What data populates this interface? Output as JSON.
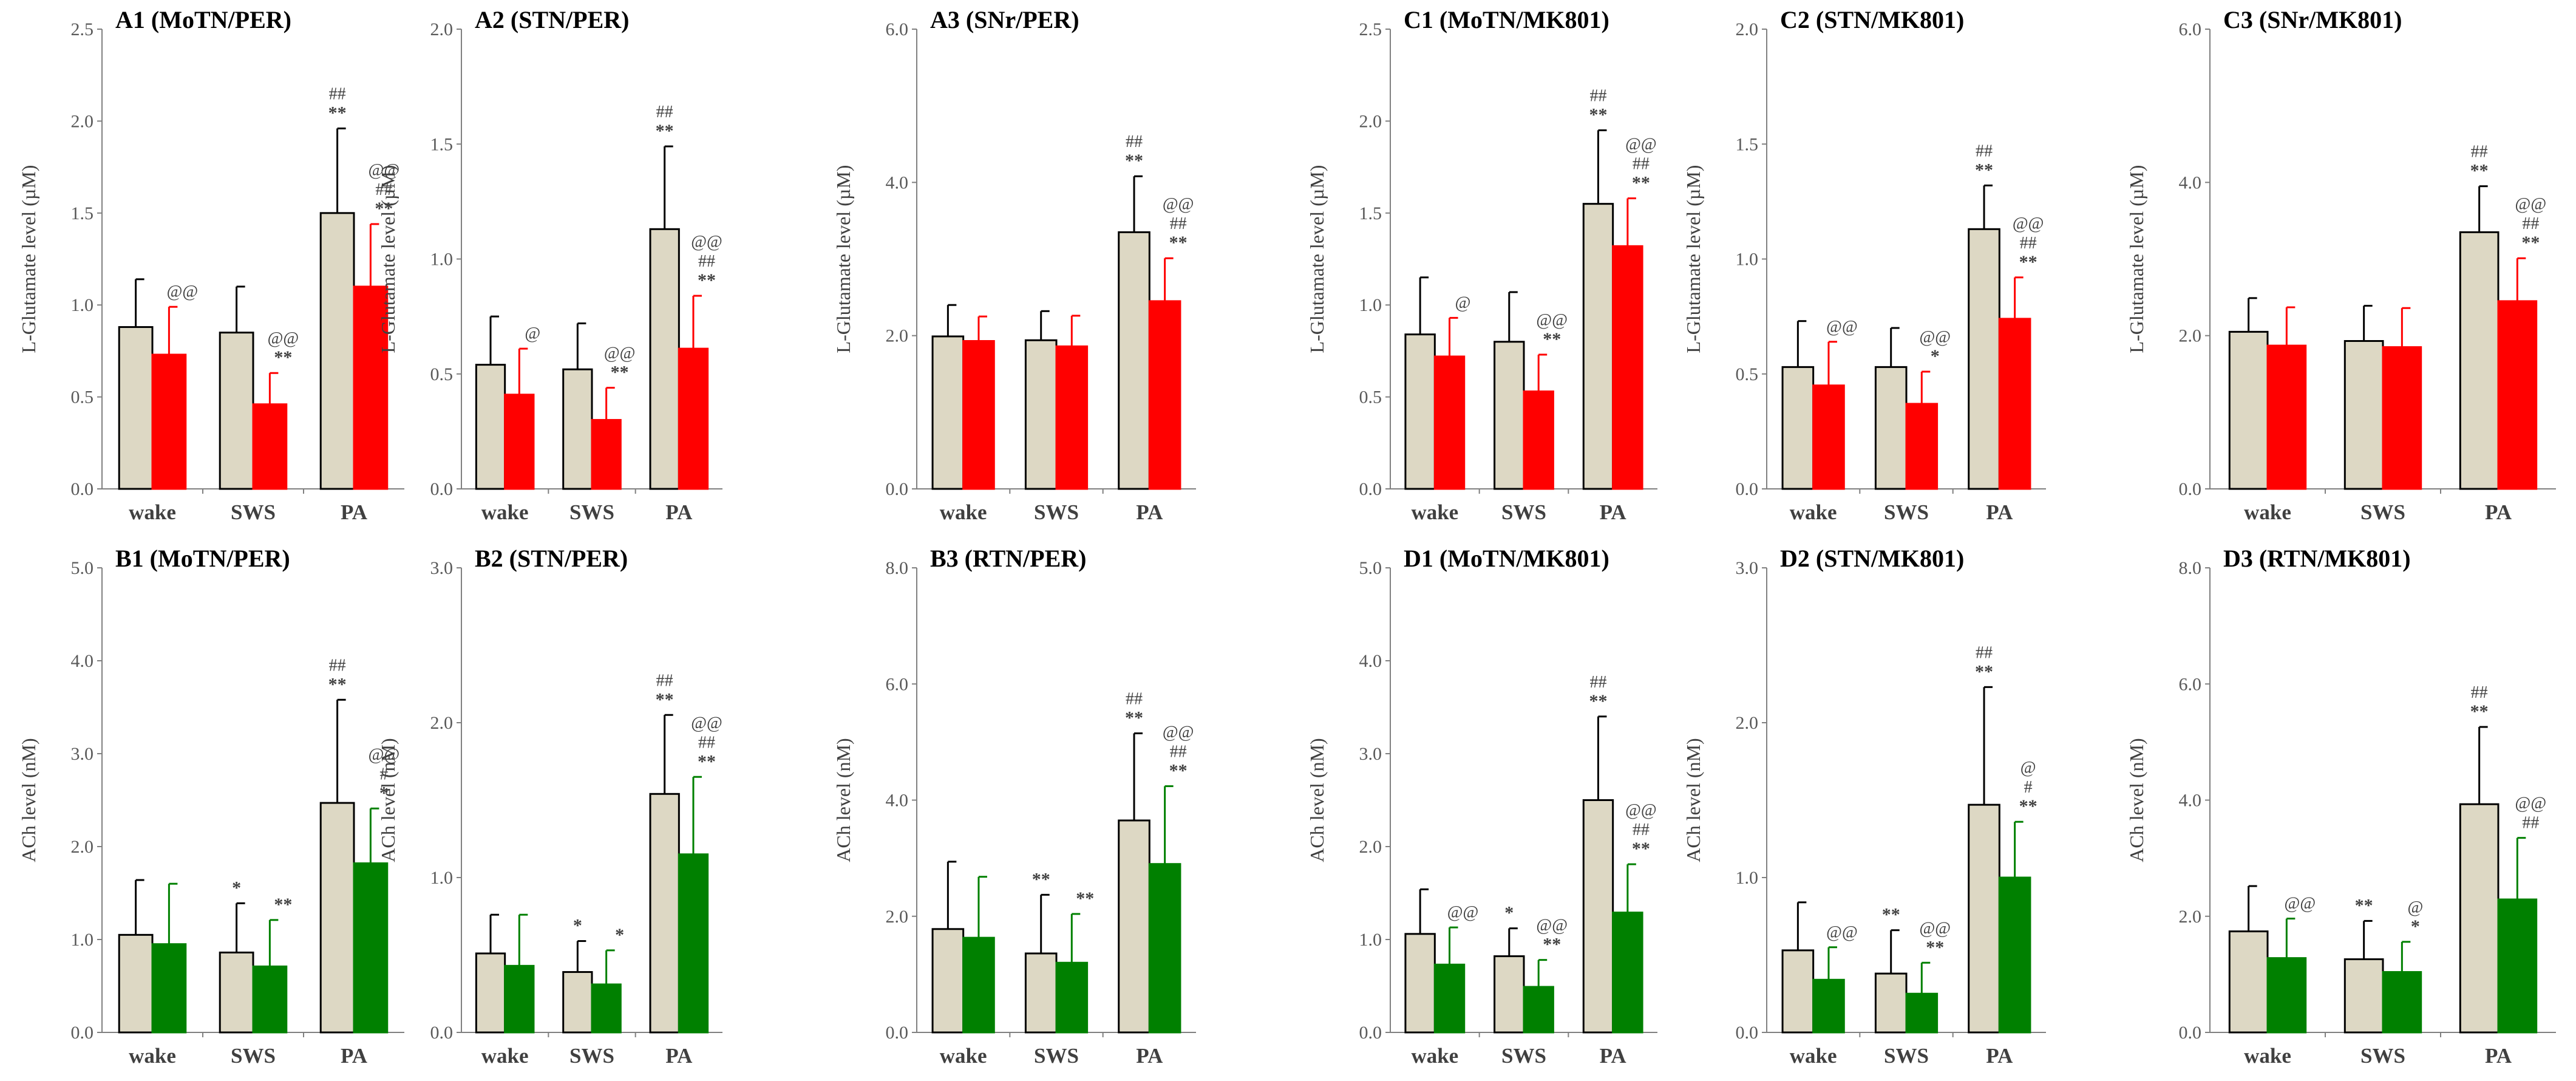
{
  "colors": {
    "control_bar": "#ddd8c4",
    "glutamate_treatment": "#ff0000",
    "ach_treatment": "#008000",
    "axis": "#808080",
    "bar_edge": "#000000",
    "text": "#404040"
  },
  "chart_data": [
    {
      "type": "bar",
      "id": "A1",
      "title": "A1 (MoTN/PER)",
      "ylabel": "L-Glutamate level (µM)",
      "categories": [
        "wake",
        "SWS",
        "PA"
      ],
      "ylim": [
        0,
        2.5
      ],
      "yticks": [
        "0.0",
        "0.5",
        "1.0",
        "1.5",
        "2.0",
        "2.5"
      ],
      "treatment_color": "glutamate_treatment",
      "series": [
        {
          "name": "control",
          "values": [
            0.88,
            0.85,
            1.5
          ],
          "errors": [
            0.26,
            0.25,
            0.46
          ]
        },
        {
          "name": "treatment",
          "values": [
            0.73,
            0.46,
            1.1
          ],
          "errors": [
            0.26,
            0.17,
            0.34
          ]
        }
      ],
      "annotations": [
        {
          "category": 0,
          "series": 1,
          "lines": [
            "@@"
          ]
        },
        {
          "category": 1,
          "series": 1,
          "lines": [
            "@@",
            "**"
          ]
        },
        {
          "category": 2,
          "series": 0,
          "lines": [
            "##",
            "**"
          ]
        },
        {
          "category": 2,
          "series": 1,
          "lines": [
            "@@",
            "##",
            "**"
          ]
        }
      ]
    },
    {
      "type": "bar",
      "id": "A2",
      "title": "A2 (STN/PER)",
      "ylabel": "L-Glutamate level (µM)",
      "categories": [
        "wake",
        "SWS",
        "PA"
      ],
      "ylim": [
        0,
        2.0
      ],
      "yticks": [
        "0.0",
        "0.5",
        "1.0",
        "1.5",
        "2.0"
      ],
      "treatment_color": "glutamate_treatment",
      "series": [
        {
          "name": "control",
          "values": [
            0.54,
            0.52,
            1.13
          ],
          "errors": [
            0.21,
            0.2,
            0.36
          ]
        },
        {
          "name": "treatment",
          "values": [
            0.41,
            0.3,
            0.61
          ],
          "errors": [
            0.2,
            0.14,
            0.23
          ]
        }
      ],
      "annotations": [
        {
          "category": 0,
          "series": 1,
          "lines": [
            "@"
          ]
        },
        {
          "category": 1,
          "series": 1,
          "lines": [
            "@@",
            "**"
          ]
        },
        {
          "category": 2,
          "series": 0,
          "lines": [
            "##",
            "**"
          ]
        },
        {
          "category": 2,
          "series": 1,
          "lines": [
            "@@",
            "##",
            "**"
          ]
        }
      ]
    },
    {
      "type": "bar",
      "id": "A3",
      "title": "A3 (SNr/PER)",
      "ylabel": "L-Glutamate level (µM)",
      "categories": [
        "wake",
        "SWS",
        "PA"
      ],
      "ylim": [
        0,
        6.0
      ],
      "yticks": [
        "0.0",
        "2.0",
        "4.0",
        "6.0"
      ],
      "treatment_color": "glutamate_treatment",
      "series": [
        {
          "name": "control",
          "values": [
            1.99,
            1.94,
            3.35
          ],
          "errors": [
            0.41,
            0.38,
            0.73
          ]
        },
        {
          "name": "treatment",
          "values": [
            1.93,
            1.86,
            2.45
          ],
          "errors": [
            0.32,
            0.4,
            0.56
          ]
        }
      ],
      "annotations": [
        {
          "category": 2,
          "series": 0,
          "lines": [
            "##",
            "**"
          ]
        },
        {
          "category": 2,
          "series": 1,
          "lines": [
            "@@",
            "##",
            "**"
          ]
        }
      ]
    },
    {
      "type": "bar",
      "id": "C1",
      "title": "C1 (MoTN/MK801)",
      "ylabel": "L-Glutamate level (µM)",
      "categories": [
        "wake",
        "SWS",
        "PA"
      ],
      "ylim": [
        0,
        2.5
      ],
      "yticks": [
        "0.0",
        "0.5",
        "1.0",
        "1.5",
        "2.0",
        "2.5"
      ],
      "treatment_color": "glutamate_treatment",
      "series": [
        {
          "name": "control",
          "values": [
            0.84,
            0.8,
            1.55
          ],
          "errors": [
            0.31,
            0.27,
            0.4
          ]
        },
        {
          "name": "treatment",
          "values": [
            0.72,
            0.53,
            1.32
          ],
          "errors": [
            0.21,
            0.2,
            0.26
          ]
        }
      ],
      "annotations": [
        {
          "category": 0,
          "series": 1,
          "lines": [
            "@"
          ]
        },
        {
          "category": 1,
          "series": 1,
          "lines": [
            "@@",
            "**"
          ]
        },
        {
          "category": 2,
          "series": 0,
          "lines": [
            "##",
            "**"
          ]
        },
        {
          "category": 2,
          "series": 1,
          "lines": [
            "@@",
            "##",
            "**"
          ]
        }
      ]
    },
    {
      "type": "bar",
      "id": "C2",
      "title": "C2 (STN/MK801)",
      "ylabel": "L-Glutamate level (µM)",
      "categories": [
        "wake",
        "SWS",
        "PA"
      ],
      "ylim": [
        0,
        2.0
      ],
      "yticks": [
        "0.0",
        "0.5",
        "1.0",
        "1.5",
        "2.0"
      ],
      "treatment_color": "glutamate_treatment",
      "series": [
        {
          "name": "control",
          "values": [
            0.53,
            0.53,
            1.13
          ],
          "errors": [
            0.2,
            0.17,
            0.19
          ]
        },
        {
          "name": "treatment",
          "values": [
            0.45,
            0.37,
            0.74
          ],
          "errors": [
            0.19,
            0.14,
            0.18
          ]
        }
      ],
      "annotations": [
        {
          "category": 0,
          "series": 1,
          "lines": [
            "@@"
          ]
        },
        {
          "category": 1,
          "series": 1,
          "lines": [
            "@@",
            "*"
          ]
        },
        {
          "category": 2,
          "series": 0,
          "lines": [
            "##",
            "**"
          ]
        },
        {
          "category": 2,
          "series": 1,
          "lines": [
            "@@",
            "##",
            "**"
          ]
        }
      ]
    },
    {
      "type": "bar",
      "id": "C3",
      "title": "C3 (SNr/MK801)",
      "ylabel": "L-Glutamate level (µM)",
      "categories": [
        "wake",
        "SWS",
        "PA"
      ],
      "ylim": [
        0,
        6.0
      ],
      "yticks": [
        "0.0",
        "2.0",
        "4.0",
        "6.0"
      ],
      "treatment_color": "glutamate_treatment",
      "series": [
        {
          "name": "control",
          "values": [
            2.05,
            1.93,
            3.35
          ],
          "errors": [
            0.44,
            0.46,
            0.6
          ]
        },
        {
          "name": "treatment",
          "values": [
            1.87,
            1.85,
            2.45
          ],
          "errors": [
            0.5,
            0.51,
            0.56
          ]
        }
      ],
      "annotations": [
        {
          "category": 2,
          "series": 0,
          "lines": [
            "##",
            "**"
          ]
        },
        {
          "category": 2,
          "series": 1,
          "lines": [
            "@@",
            "##",
            "**"
          ]
        }
      ]
    },
    {
      "type": "bar",
      "id": "B1",
      "title": "B1 (MoTN/PER)",
      "ylabel": "ACh level (nM)",
      "categories": [
        "wake",
        "SWS",
        "PA"
      ],
      "ylim": [
        0,
        5.0
      ],
      "yticks": [
        "0.0",
        "1.0",
        "2.0",
        "3.0",
        "4.0",
        "5.0"
      ],
      "treatment_color": "ach_treatment",
      "series": [
        {
          "name": "control",
          "values": [
            1.05,
            0.86,
            2.47
          ],
          "errors": [
            0.59,
            0.53,
            1.11
          ]
        },
        {
          "name": "treatment",
          "values": [
            0.95,
            0.71,
            1.82
          ],
          "errors": [
            0.65,
            0.5,
            0.59
          ]
        }
      ],
      "annotations": [
        {
          "category": 1,
          "series": 0,
          "lines": [
            "*"
          ]
        },
        {
          "category": 1,
          "series": 1,
          "lines": [
            "**"
          ]
        },
        {
          "category": 2,
          "series": 0,
          "lines": [
            "##",
            "**"
          ]
        },
        {
          "category": 2,
          "series": 1,
          "lines": [
            "@@",
            "#",
            "*"
          ]
        }
      ]
    },
    {
      "type": "bar",
      "id": "B2",
      "title": "B2 (STN/PER)",
      "ylabel": "ACh level (nM)",
      "categories": [
        "wake",
        "SWS",
        "PA"
      ],
      "ylim": [
        0,
        3.0
      ],
      "yticks": [
        "0.0",
        "1.0",
        "2.0",
        "3.0"
      ],
      "treatment_color": "ach_treatment",
      "series": [
        {
          "name": "control",
          "values": [
            0.51,
            0.39,
            1.54
          ],
          "errors": [
            0.25,
            0.2,
            0.51
          ]
        },
        {
          "name": "treatment",
          "values": [
            0.43,
            0.31,
            1.15
          ],
          "errors": [
            0.33,
            0.22,
            0.5
          ]
        }
      ],
      "annotations": [
        {
          "category": 1,
          "series": 0,
          "lines": [
            "*"
          ]
        },
        {
          "category": 1,
          "series": 1,
          "lines": [
            "*"
          ]
        },
        {
          "category": 2,
          "series": 0,
          "lines": [
            "##",
            "**"
          ]
        },
        {
          "category": 2,
          "series": 1,
          "lines": [
            "@@",
            "##",
            "**"
          ]
        }
      ]
    },
    {
      "type": "bar",
      "id": "B3",
      "title": "B3 (RTN/PER)",
      "ylabel": "ACh level (nM)",
      "categories": [
        "wake",
        "SWS",
        "PA"
      ],
      "ylim": [
        0,
        8.0
      ],
      "yticks": [
        "0.0",
        "2.0",
        "4.0",
        "6.0",
        "8.0"
      ],
      "treatment_color": "ach_treatment",
      "series": [
        {
          "name": "control",
          "values": [
            1.78,
            1.36,
            3.65
          ],
          "errors": [
            1.16,
            1.01,
            1.5
          ]
        },
        {
          "name": "treatment",
          "values": [
            1.63,
            1.2,
            2.9
          ],
          "errors": [
            1.05,
            0.84,
            1.34
          ]
        }
      ],
      "annotations": [
        {
          "category": 1,
          "series": 0,
          "lines": [
            "**"
          ]
        },
        {
          "category": 1,
          "series": 1,
          "lines": [
            "**"
          ]
        },
        {
          "category": 2,
          "series": 0,
          "lines": [
            "##",
            "**"
          ]
        },
        {
          "category": 2,
          "series": 1,
          "lines": [
            "@@",
            "##",
            "**"
          ]
        }
      ]
    },
    {
      "type": "bar",
      "id": "D1",
      "title": "D1 (MoTN/MK801)",
      "ylabel": "ACh level (nM)",
      "categories": [
        "wake",
        "SWS",
        "PA"
      ],
      "ylim": [
        0,
        5.0
      ],
      "yticks": [
        "0.0",
        "1.0",
        "2.0",
        "3.0",
        "4.0",
        "5.0"
      ],
      "treatment_color": "ach_treatment",
      "series": [
        {
          "name": "control",
          "values": [
            1.06,
            0.82,
            2.5
          ],
          "errors": [
            0.48,
            0.3,
            0.9
          ]
        },
        {
          "name": "treatment",
          "values": [
            0.73,
            0.49,
            1.29
          ],
          "errors": [
            0.4,
            0.29,
            0.52
          ]
        }
      ],
      "annotations": [
        {
          "category": 0,
          "series": 1,
          "lines": [
            "@@"
          ]
        },
        {
          "category": 1,
          "series": 0,
          "lines": [
            "*"
          ]
        },
        {
          "category": 1,
          "series": 1,
          "lines": [
            "@@",
            "**"
          ]
        },
        {
          "category": 2,
          "series": 0,
          "lines": [
            "##",
            "**"
          ]
        },
        {
          "category": 2,
          "series": 1,
          "lines": [
            "@@",
            "##",
            "**"
          ]
        }
      ]
    },
    {
      "type": "bar",
      "id": "D2",
      "title": "D2 (STN/MK801)",
      "ylabel": "ACh level (nM)",
      "categories": [
        "wake",
        "SWS",
        "PA"
      ],
      "ylim": [
        0,
        3.0
      ],
      "yticks": [
        "0.0",
        "1.0",
        "2.0",
        "3.0"
      ],
      "treatment_color": "ach_treatment",
      "series": [
        {
          "name": "control",
          "values": [
            0.53,
            0.38,
            1.47
          ],
          "errors": [
            0.31,
            0.28,
            0.76
          ]
        },
        {
          "name": "treatment",
          "values": [
            0.34,
            0.25,
            1.0
          ],
          "errors": [
            0.21,
            0.2,
            0.36
          ]
        }
      ],
      "annotations": [
        {
          "category": 0,
          "series": 1,
          "lines": [
            "@@"
          ]
        },
        {
          "category": 1,
          "series": 0,
          "lines": [
            "**"
          ]
        },
        {
          "category": 1,
          "series": 1,
          "lines": [
            "@@",
            "**"
          ]
        },
        {
          "category": 2,
          "series": 0,
          "lines": [
            "##",
            "**"
          ]
        },
        {
          "category": 2,
          "series": 1,
          "lines": [
            "@",
            "#",
            "**"
          ]
        }
      ]
    },
    {
      "type": "bar",
      "id": "D3",
      "title": "D3 (RTN/MK801)",
      "ylabel": "ACh level (nM)",
      "categories": [
        "wake",
        "SWS",
        "PA"
      ],
      "ylim": [
        0,
        8.0
      ],
      "yticks": [
        "0.0",
        "2.0",
        "4.0",
        "6.0",
        "8.0"
      ],
      "treatment_color": "ach_treatment",
      "series": [
        {
          "name": "control",
          "values": [
            1.74,
            1.26,
            3.93
          ],
          "errors": [
            0.78,
            0.66,
            1.33
          ]
        },
        {
          "name": "treatment",
          "values": [
            1.28,
            1.04,
            2.29
          ],
          "errors": [
            0.68,
            0.52,
            1.06
          ]
        }
      ],
      "annotations": [
        {
          "category": 0,
          "series": 1,
          "lines": [
            "@@"
          ]
        },
        {
          "category": 1,
          "series": 0,
          "lines": [
            "**"
          ]
        },
        {
          "category": 1,
          "series": 1,
          "lines": [
            "@",
            "*"
          ]
        },
        {
          "category": 2,
          "series": 0,
          "lines": [
            "##",
            "**"
          ]
        },
        {
          "category": 2,
          "series": 1,
          "lines": [
            "@@",
            "##"
          ]
        }
      ]
    }
  ]
}
